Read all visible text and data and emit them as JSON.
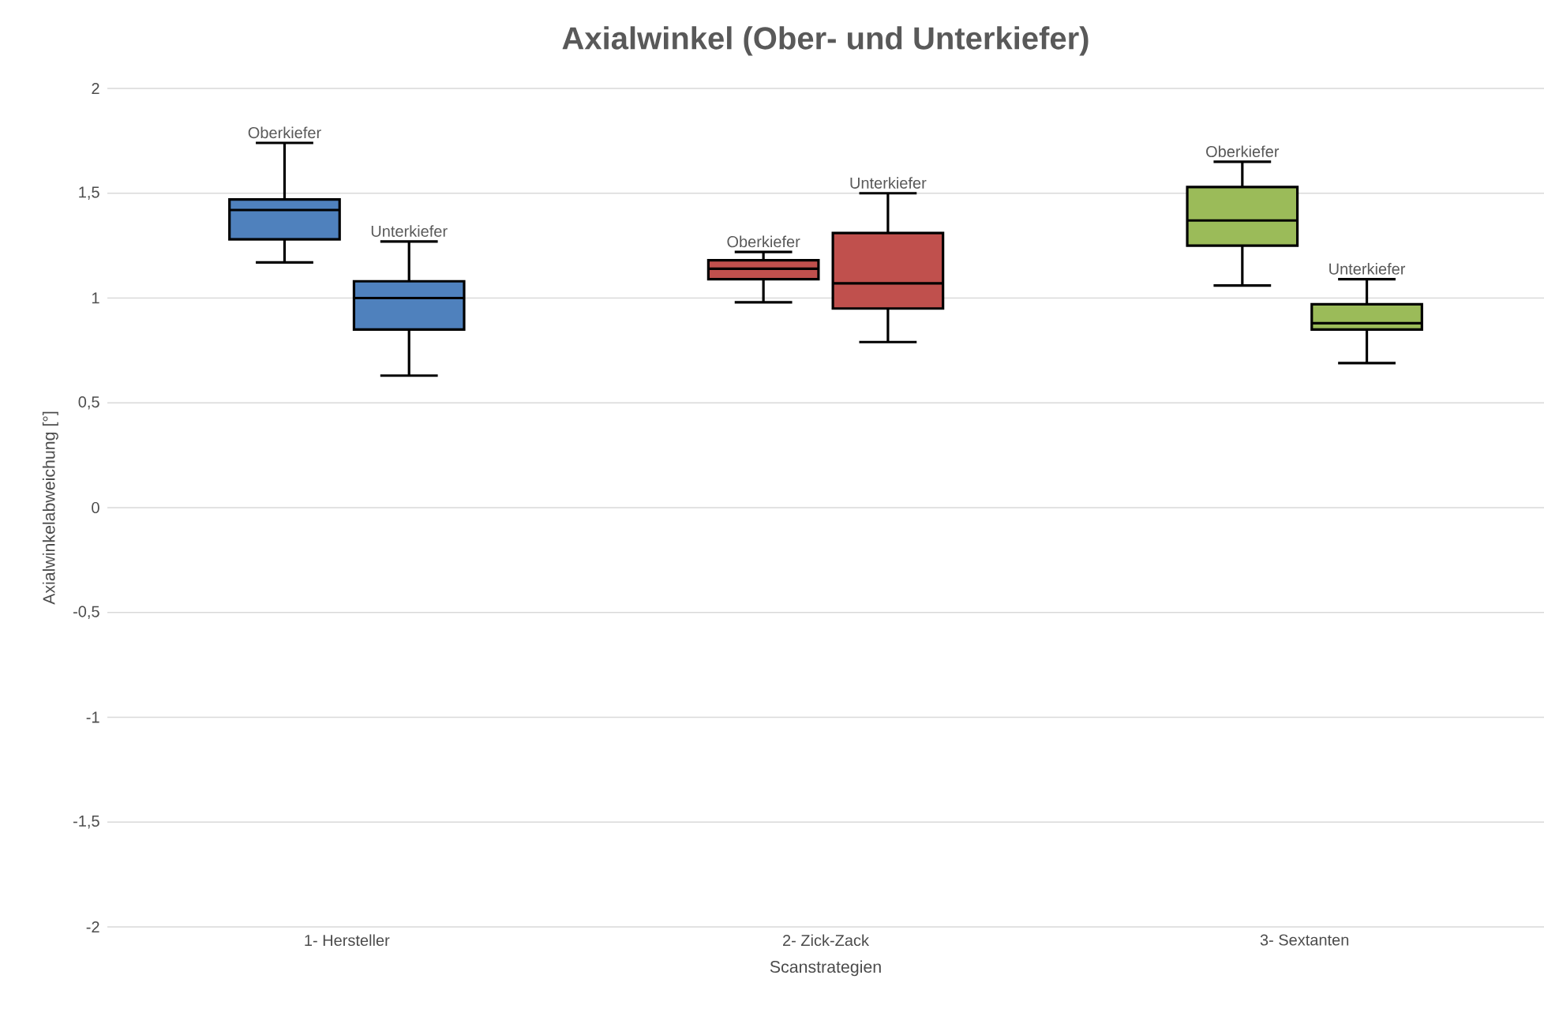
{
  "chart_data": {
    "type": "box",
    "title": "Axialwinkel (Ober- und Unterkiefer)",
    "xlabel": "Scanstrategien",
    "ylabel": "Axialwinkelabweichung [°]",
    "categories": [
      "1- Hersteller",
      "2- Zick-Zack",
      "3- Sextanten"
    ],
    "series": [
      {
        "name": "Oberkiefer",
        "colors": [
          "#4f81bd",
          "#c0504d",
          "#9bbb59"
        ],
        "boxes": [
          {
            "low": 1.17,
            "q1": 1.28,
            "median": 1.42,
            "q3": 1.47,
            "high": 1.74
          },
          {
            "low": 0.98,
            "q1": 1.09,
            "median": 1.14,
            "q3": 1.18,
            "high": 1.22
          },
          {
            "low": 1.06,
            "q1": 1.25,
            "median": 1.37,
            "q3": 1.53,
            "high": 1.65
          }
        ]
      },
      {
        "name": "Unterkiefer",
        "colors": [
          "#4f81bd",
          "#c0504d",
          "#9bbb59"
        ],
        "boxes": [
          {
            "low": 0.63,
            "q1": 0.85,
            "median": 1.0,
            "q3": 1.08,
            "high": 1.27
          },
          {
            "low": 0.79,
            "q1": 0.95,
            "median": 1.07,
            "q3": 1.31,
            "high": 1.5
          },
          {
            "low": 0.69,
            "q1": 0.85,
            "median": 0.88,
            "q3": 0.97,
            "high": 1.09
          }
        ]
      }
    ],
    "ylim": [
      -2,
      2
    ],
    "yticks": [
      -2,
      {
        "value": -1.5,
        "label": "-1,5"
      },
      -1,
      {
        "value": -0.5,
        "label": "-0,5"
      },
      0,
      {
        "value": 0.5,
        "label": "0,5"
      },
      1,
      {
        "value": 1.5,
        "label": "1,5"
      },
      2
    ],
    "grid": "y"
  }
}
